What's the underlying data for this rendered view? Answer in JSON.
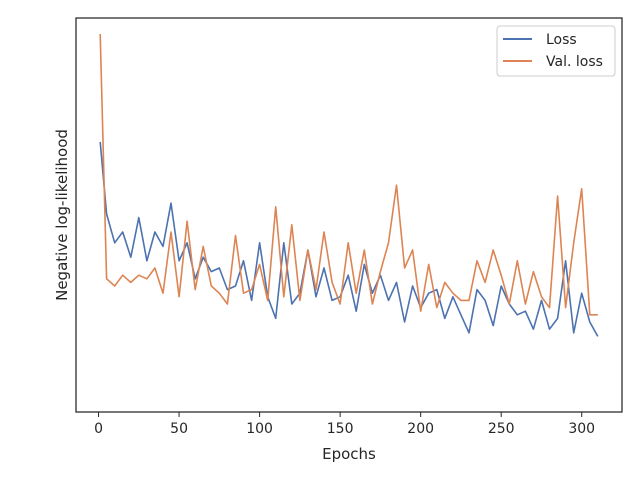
{
  "chart_data": {
    "type": "line",
    "title": "",
    "xlabel": "Epochs",
    "ylabel": "Negative log-likelihood",
    "xlim": [
      -14,
      325
    ],
    "ylim": [
      0,
      100
    ],
    "x_ticks": [
      0,
      50,
      100,
      150,
      200,
      250,
      300
    ],
    "y_ticks_shown": false,
    "grid": false,
    "legend": "top-right",
    "colors": {
      "Loss": "#4c72b0",
      "Val. loss": "#dd8452"
    },
    "x": [
      1,
      5,
      10,
      15,
      20,
      25,
      30,
      35,
      40,
      45,
      50,
      55,
      60,
      65,
      70,
      75,
      80,
      85,
      90,
      95,
      100,
      105,
      110,
      115,
      120,
      125,
      130,
      135,
      140,
      145,
      150,
      155,
      160,
      165,
      170,
      175,
      180,
      185,
      190,
      195,
      200,
      205,
      210,
      215,
      220,
      225,
      230,
      235,
      240,
      245,
      250,
      255,
      260,
      265,
      270,
      275,
      280,
      285,
      290,
      295,
      300,
      305,
      310
    ],
    "series": [
      {
        "name": "Loss",
        "values": [
          70,
          50,
          42,
          45,
          38,
          49,
          37,
          45,
          41,
          53,
          37,
          42,
          32,
          38,
          34,
          35,
          29,
          30,
          37,
          26,
          42,
          27,
          21,
          42,
          25,
          28,
          40,
          27,
          35,
          26,
          27,
          33,
          23,
          36,
          28,
          33,
          26,
          31,
          20,
          30,
          24,
          28,
          29,
          21,
          27,
          22,
          17,
          29,
          26,
          19,
          30,
          25,
          22,
          23,
          18,
          26,
          18,
          21,
          37,
          17,
          28,
          20,
          16
        ]
      },
      {
        "name": "Val. loss",
        "values": [
          100,
          32,
          30,
          33,
          31,
          33,
          32,
          35,
          28,
          45,
          27,
          48,
          29,
          41,
          30,
          28,
          25,
          44,
          28,
          29,
          36,
          26,
          52,
          27,
          47,
          26,
          40,
          29,
          45,
          31,
          25,
          42,
          28,
          40,
          25,
          34,
          42,
          58,
          35,
          40,
          23,
          36,
          24,
          31,
          28,
          26,
          26,
          37,
          31,
          40,
          33,
          25,
          37,
          25,
          34,
          27,
          24,
          55,
          24,
          42,
          57,
          22,
          22
        ]
      }
    ]
  }
}
